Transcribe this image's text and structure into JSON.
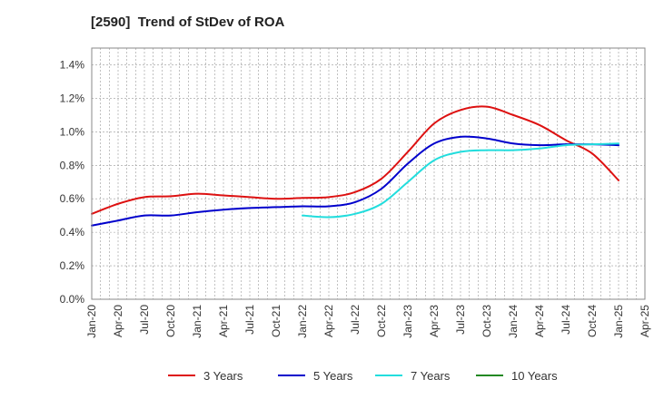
{
  "chart_data": {
    "type": "line",
    "title": "[2590]  Trend of StDev of ROA",
    "xlabel": "",
    "ylabel": "",
    "ylim": [
      0,
      1.5
    ],
    "y_ticks": [
      "0.0%",
      "0.2%",
      "0.4%",
      "0.6%",
      "0.8%",
      "1.0%",
      "1.2%",
      "1.4%"
    ],
    "y_tick_values": [
      0,
      0.2,
      0.4,
      0.6,
      0.8,
      1.0,
      1.2,
      1.4
    ],
    "x_ticks": [
      "Jan-20",
      "Apr-20",
      "Jul-20",
      "Oct-20",
      "Jan-21",
      "Apr-21",
      "Jul-21",
      "Oct-21",
      "Jan-22",
      "Apr-22",
      "Jul-22",
      "Oct-22",
      "Jan-23",
      "Apr-23",
      "Jul-23",
      "Oct-23",
      "Jan-24",
      "Apr-24",
      "Jul-24",
      "Oct-24",
      "Jan-25",
      "Apr-25"
    ],
    "grid": true,
    "legend_position": "bottom",
    "series": [
      {
        "name": "3 Years",
        "color": "#dd1111",
        "x": [
          "Jan-20",
          "Apr-20",
          "Jul-20",
          "Oct-20",
          "Jan-21",
          "Apr-21",
          "Jul-21",
          "Oct-21",
          "Jan-22",
          "Apr-22",
          "Jul-22",
          "Oct-22",
          "Jan-23",
          "Apr-23",
          "Jul-23",
          "Oct-23",
          "Jan-24",
          "Apr-24",
          "Jul-24",
          "Oct-24",
          "Jan-25"
        ],
        "values": [
          0.51,
          0.57,
          0.61,
          0.615,
          0.63,
          0.62,
          0.61,
          0.6,
          0.605,
          0.61,
          0.64,
          0.72,
          0.88,
          1.05,
          1.13,
          1.15,
          1.1,
          1.04,
          0.95,
          0.87,
          0.71
        ]
      },
      {
        "name": "5 Years",
        "color": "#0000cc",
        "x": [
          "Jan-20",
          "Apr-20",
          "Jul-20",
          "Oct-20",
          "Jan-21",
          "Apr-21",
          "Jul-21",
          "Oct-21",
          "Jan-22",
          "Apr-22",
          "Jul-22",
          "Oct-22",
          "Jan-23",
          "Apr-23",
          "Jul-23",
          "Oct-23",
          "Jan-24",
          "Apr-24",
          "Jul-24",
          "Oct-24",
          "Jan-25"
        ],
        "values": [
          0.44,
          0.47,
          0.5,
          0.5,
          0.52,
          0.535,
          0.545,
          0.55,
          0.555,
          0.555,
          0.58,
          0.66,
          0.81,
          0.93,
          0.97,
          0.96,
          0.93,
          0.92,
          0.925,
          0.925,
          0.92
        ]
      },
      {
        "name": "7 Years",
        "color": "#22dddd",
        "x": [
          "Jan-22",
          "Apr-22",
          "Jul-22",
          "Oct-22",
          "Jan-23",
          "Apr-23",
          "Jul-23",
          "Oct-23",
          "Jan-24",
          "Apr-24",
          "Jul-24",
          "Oct-24",
          "Jan-25"
        ],
        "values": [
          0.5,
          0.49,
          0.51,
          0.57,
          0.7,
          0.83,
          0.88,
          0.89,
          0.89,
          0.9,
          0.92,
          0.925,
          0.93
        ]
      },
      {
        "name": "10 Years",
        "color": "#228822",
        "x": [],
        "values": []
      }
    ]
  }
}
